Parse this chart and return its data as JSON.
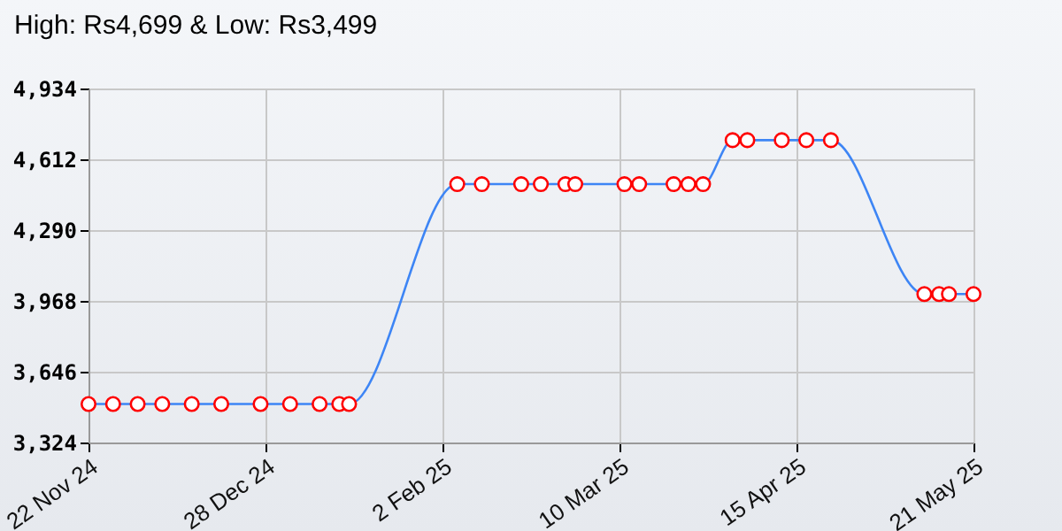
{
  "chart_data": {
    "type": "line",
    "title": "High: Rs4,699 & Low: Rs3,499",
    "x": [
      "2024-11-22",
      "2024-11-27",
      "2024-12-02",
      "2024-12-07",
      "2024-12-13",
      "2024-12-19",
      "2024-12-27",
      "2025-01-02",
      "2025-01-08",
      "2025-01-12",
      "2025-01-14",
      "2025-02-05",
      "2025-02-10",
      "2025-02-18",
      "2025-02-22",
      "2025-02-27",
      "2025-03-01",
      "2025-03-11",
      "2025-03-14",
      "2025-03-21",
      "2025-03-24",
      "2025-03-27",
      "2025-04-02",
      "2025-04-05",
      "2025-04-12",
      "2025-04-17",
      "2025-04-22",
      "2025-05-11",
      "2025-05-14",
      "2025-05-16",
      "2025-05-21"
    ],
    "series": [
      {
        "color": "#3d85f5",
        "values": [
          3499,
          3499,
          3499,
          3499,
          3499,
          3499,
          3499,
          3499,
          3499,
          3499,
          3499,
          4499,
          4499,
          4499,
          4499,
          4499,
          4499,
          4499,
          4499,
          4499,
          4499,
          4499,
          4699,
          4699,
          4699,
          4699,
          4699,
          3999,
          3999,
          3999,
          3999
        ]
      }
    ],
    "xlim": [
      "2024-11-22",
      "2025-05-21"
    ],
    "xticks": [
      {
        "value": "2024-11-22",
        "label": "22 Nov 24"
      },
      {
        "value": "2024-12-28",
        "label": "28 Dec 24"
      },
      {
        "value": "2025-02-02",
        "label": "2 Feb 25"
      },
      {
        "value": "2025-03-10",
        "label": "10 Mar 25"
      },
      {
        "value": "2025-04-15",
        "label": "15 Apr 25"
      },
      {
        "value": "2025-05-21",
        "label": "21 May 25"
      }
    ],
    "ylim": [
      3324,
      4934
    ],
    "yticks": [
      {
        "value": 3324,
        "label": "3,324"
      },
      {
        "value": 3646,
        "label": "3,646"
      },
      {
        "value": 3968,
        "label": "3,968"
      },
      {
        "value": 4290,
        "label": "4,290"
      },
      {
        "value": 4612,
        "label": "4,612"
      },
      {
        "value": 4934,
        "label": "4,934"
      }
    ],
    "grid": true,
    "marker": "circle",
    "line_style": "solid"
  }
}
